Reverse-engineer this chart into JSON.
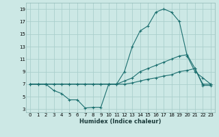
{
  "xlabel": "Humidex (Indice chaleur)",
  "bg_color": "#cce8e5",
  "grid_color": "#aacfcc",
  "line_color": "#1a6e6e",
  "xlim": [
    -0.5,
    23.5
  ],
  "ylim": [
    2.5,
    20
  ],
  "xticks": [
    0,
    1,
    2,
    3,
    4,
    5,
    6,
    7,
    8,
    9,
    10,
    11,
    12,
    13,
    14,
    15,
    16,
    17,
    18,
    19,
    20,
    21,
    22,
    23
  ],
  "yticks": [
    3,
    5,
    7,
    9,
    11,
    13,
    15,
    17,
    19
  ],
  "series": [
    {
      "x": [
        0,
        1,
        2,
        3,
        4,
        5,
        6,
        7,
        8,
        9,
        10,
        11,
        12,
        13,
        14,
        15,
        16,
        17,
        18,
        19,
        20,
        21,
        22,
        23
      ],
      "y": [
        7,
        7,
        7,
        7,
        7,
        7,
        7,
        7,
        7,
        7,
        7,
        7,
        9,
        13,
        15.5,
        16.3,
        18.5,
        19,
        18.5,
        17,
        11.5,
        9,
        8,
        7
      ]
    },
    {
      "x": [
        0,
        1,
        2,
        3,
        4,
        5,
        6,
        7,
        8,
        9,
        10,
        11,
        12,
        13,
        14,
        15,
        16,
        17,
        18,
        19,
        20,
        21,
        22,
        23
      ],
      "y": [
        7,
        7,
        7,
        7,
        7,
        7,
        7,
        7,
        7,
        7,
        7,
        7,
        7.5,
        8,
        9,
        9.5,
        10,
        10.5,
        11,
        11.5,
        11.7,
        9.5,
        7,
        7
      ]
    },
    {
      "x": [
        0,
        1,
        2,
        3,
        4,
        5,
        6,
        7,
        8,
        9,
        10,
        11,
        12,
        13,
        14,
        15,
        16,
        17,
        18,
        19,
        20,
        21,
        22,
        23
      ],
      "y": [
        7,
        7,
        7,
        6,
        5.5,
        4.5,
        4.5,
        3.2,
        3.3,
        3.3,
        7,
        7,
        7,
        7.2,
        7.5,
        7.8,
        8,
        8.3,
        8.5,
        9,
        9.2,
        9.5,
        6.8,
        6.8
      ]
    }
  ]
}
